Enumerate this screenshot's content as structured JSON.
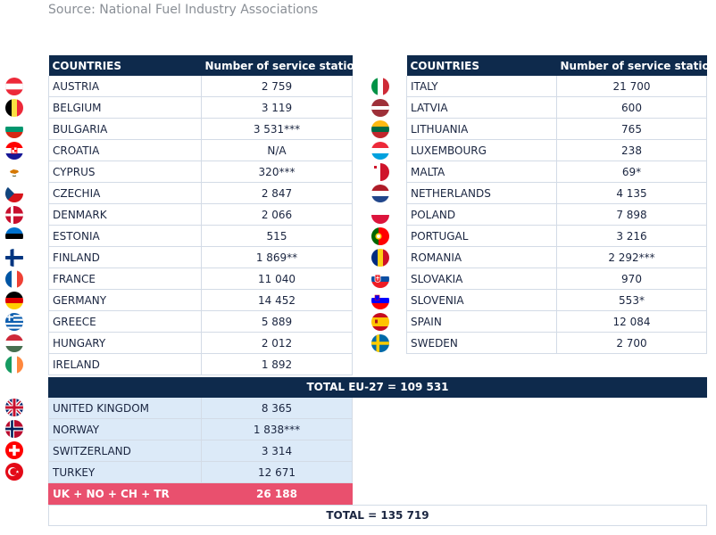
{
  "source": "Source: National Fuel Industry Associations",
  "headers": {
    "countries": "COUNTRIES",
    "stations": "Number of service stations"
  },
  "left_rows": [
    {
      "country": "AUSTRIA",
      "stations": "2 759",
      "flag": "austria-flag-icon"
    },
    {
      "country": "BELGIUM",
      "stations": "3 119",
      "flag": "belgium-flag-icon"
    },
    {
      "country": "BULGARIA",
      "stations": "3 531***",
      "flag": "bulgaria-flag-icon"
    },
    {
      "country": "CROATIA",
      "stations": "N/A",
      "flag": "croatia-flag-icon"
    },
    {
      "country": "CYPRUS",
      "stations": "320***",
      "flag": "cyprus-flag-icon"
    },
    {
      "country": "CZECHIA",
      "stations": "2 847",
      "flag": "czechia-flag-icon"
    },
    {
      "country": "DENMARK",
      "stations": "2 066",
      "flag": "denmark-flag-icon"
    },
    {
      "country": "ESTONIA",
      "stations": "515",
      "flag": "estonia-flag-icon"
    },
    {
      "country": "FINLAND",
      "stations": "1 869**",
      "flag": "finland-flag-icon"
    },
    {
      "country": "FRANCE",
      "stations": "11 040",
      "flag": "france-flag-icon"
    },
    {
      "country": "GERMANY",
      "stations": "14 452",
      "flag": "germany-flag-icon"
    },
    {
      "country": "GREECE",
      "stations": "5 889",
      "flag": "greece-flag-icon"
    },
    {
      "country": "HUNGARY",
      "stations": "2 012",
      "flag": "hungary-flag-icon"
    },
    {
      "country": "IRELAND",
      "stations": "1 892",
      "flag": "ireland-flag-icon"
    }
  ],
  "right_rows": [
    {
      "country": "ITALY",
      "stations": "21 700",
      "flag": "italy-flag-icon"
    },
    {
      "country": "LATVIA",
      "stations": "600",
      "flag": "latvia-flag-icon"
    },
    {
      "country": "LITHUANIA",
      "stations": "765",
      "flag": "lithuania-flag-icon"
    },
    {
      "country": "LUXEMBOURG",
      "stations": "238",
      "flag": "luxembourg-flag-icon"
    },
    {
      "country": "MALTA",
      "stations": "69*",
      "flag": "malta-flag-icon"
    },
    {
      "country": "NETHERLANDS",
      "stations": "4 135",
      "flag": "netherlands-flag-icon"
    },
    {
      "country": "POLAND",
      "stations": "7 898",
      "flag": "poland-flag-icon"
    },
    {
      "country": "PORTUGAL",
      "stations": "3 216",
      "flag": "portugal-flag-icon"
    },
    {
      "country": "ROMANIA",
      "stations": "2 292***",
      "flag": "romania-flag-icon"
    },
    {
      "country": "SLOVAKIA",
      "stations": "970",
      "flag": "slovakia-flag-icon"
    },
    {
      "country": "SLOVENIA",
      "stations": "553*",
      "flag": "slovenia-flag-icon"
    },
    {
      "country": "SPAIN",
      "stations": "12 084",
      "flag": "spain-flag-icon"
    },
    {
      "country": "SWEDEN",
      "stations": "2 700",
      "flag": "sweden-flag-icon"
    }
  ],
  "total_eu": "TOTAL EU-27 = 109 531",
  "non_eu_rows": [
    {
      "country": "UNITED KINGDOM",
      "stations": "8 365",
      "flag": "united-kingdom-flag-icon"
    },
    {
      "country": "NORWAY",
      "stations": "1 838***",
      "flag": "norway-flag-icon"
    },
    {
      "country": "SWITZERLAND",
      "stations": "3 314",
      "flag": "switzerland-flag-icon"
    },
    {
      "country": "TURKEY",
      "stations": "12 671",
      "flag": "turkey-flag-icon"
    }
  ],
  "subtotal": {
    "label": "UK + NO + CH + TR",
    "value": "26 188"
  },
  "total": "TOTAL = 135 719",
  "colors": {
    "header_bg": "#0e2a4c",
    "shade_bg": "#dceaf8",
    "subtotal_bg": "#e9506e",
    "source_text": "#8a8f96"
  }
}
